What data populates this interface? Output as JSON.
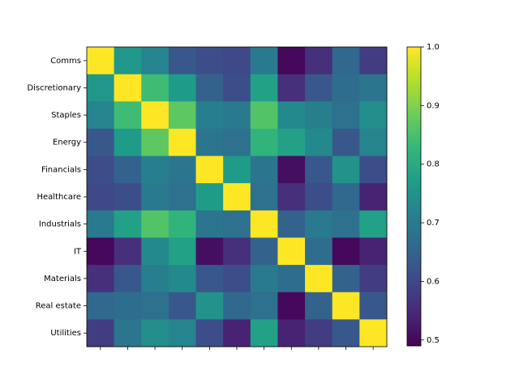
{
  "chart_data": {
    "type": "heatmap",
    "categories": [
      "Comms",
      "Discretionary",
      "Staples",
      "Energy",
      "Financials",
      "Healthcare",
      "Industrials",
      "IT",
      "Materials",
      "Real estate",
      "Utilities"
    ],
    "matrix": [
      [
        1.0,
        0.76,
        0.72,
        0.63,
        0.61,
        0.6,
        0.7,
        0.5,
        0.56,
        0.66,
        0.58
      ],
      [
        0.76,
        1.0,
        0.84,
        0.77,
        0.65,
        0.61,
        0.78,
        0.56,
        0.63,
        0.67,
        0.69
      ],
      [
        0.72,
        0.84,
        1.0,
        0.87,
        0.71,
        0.7,
        0.86,
        0.73,
        0.71,
        0.68,
        0.74
      ],
      [
        0.63,
        0.77,
        0.87,
        1.0,
        0.69,
        0.68,
        0.82,
        0.78,
        0.73,
        0.63,
        0.72
      ],
      [
        0.61,
        0.65,
        0.71,
        0.69,
        1.0,
        0.77,
        0.69,
        0.51,
        0.63,
        0.75,
        0.61
      ],
      [
        0.6,
        0.61,
        0.7,
        0.68,
        0.77,
        1.0,
        0.68,
        0.56,
        0.61,
        0.66,
        0.54
      ],
      [
        0.7,
        0.78,
        0.86,
        0.82,
        0.69,
        0.68,
        1.0,
        0.65,
        0.7,
        0.68,
        0.78
      ],
      [
        0.5,
        0.56,
        0.73,
        0.78,
        0.51,
        0.56,
        0.65,
        1.0,
        0.67,
        0.5,
        0.54
      ],
      [
        0.56,
        0.63,
        0.71,
        0.73,
        0.63,
        0.61,
        0.7,
        0.67,
        1.0,
        0.65,
        0.58
      ],
      [
        0.66,
        0.67,
        0.68,
        0.63,
        0.75,
        0.66,
        0.68,
        0.5,
        0.65,
        1.0,
        0.63
      ],
      [
        0.58,
        0.69,
        0.74,
        0.72,
        0.61,
        0.54,
        0.78,
        0.54,
        0.58,
        0.63,
        1.0
      ]
    ],
    "colormap": "viridis",
    "clim": [
      0.49,
      1.0
    ],
    "cticks": [
      0.5,
      0.6,
      0.7,
      0.8,
      0.9,
      {
        "value": 1.0,
        "label": "1.0"
      }
    ]
  }
}
